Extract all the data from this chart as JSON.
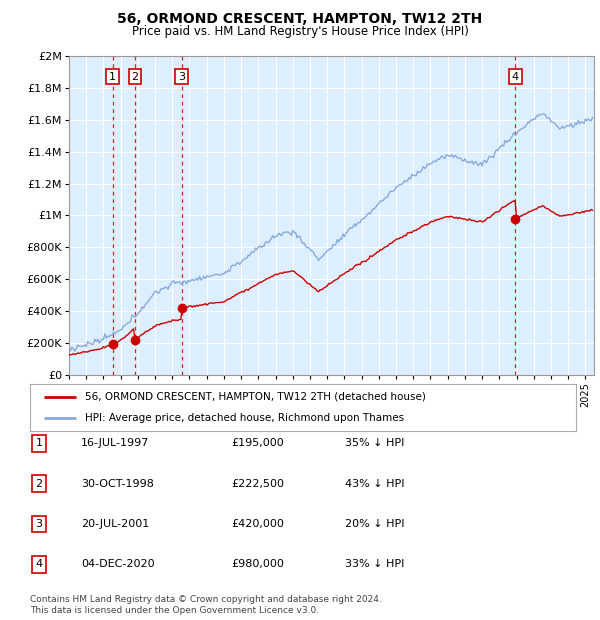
{
  "title": "56, ORMOND CRESCENT, HAMPTON, TW12 2TH",
  "subtitle": "Price paid vs. HM Land Registry's House Price Index (HPI)",
  "legend_line1": "56, ORMOND CRESCENT, HAMPTON, TW12 2TH (detached house)",
  "legend_line2": "HPI: Average price, detached house, Richmond upon Thames",
  "footer1": "Contains HM Land Registry data © Crown copyright and database right 2024.",
  "footer2": "This data is licensed under the Open Government Licence v3.0.",
  "sale_color": "#cc0000",
  "hpi_color": "#88aadd",
  "background_color": "#ddeeff",
  "plot_bg": "#ddeeff",
  "ylim": [
    0,
    2000000
  ],
  "yticks": [
    0,
    200000,
    400000,
    600000,
    800000,
    1000000,
    1200000,
    1400000,
    1600000,
    1800000,
    2000000
  ],
  "ytick_labels": [
    "£0",
    "£200K",
    "£400K",
    "£600K",
    "£800K",
    "£1M",
    "£1.2M",
    "£1.4M",
    "£1.6M",
    "£1.8M",
    "£2M"
  ],
  "sales": [
    {
      "date_num": 1997.54,
      "price": 195000,
      "label": "1"
    },
    {
      "date_num": 1998.83,
      "price": 222500,
      "label": "2"
    },
    {
      "date_num": 2001.55,
      "price": 420000,
      "label": "3"
    },
    {
      "date_num": 2020.92,
      "price": 980000,
      "label": "4"
    }
  ],
  "sale_vlines": [
    1997.54,
    1998.83,
    2001.55,
    2020.92
  ],
  "table": [
    [
      "1",
      "16-JUL-1997",
      "£195,000",
      "35% ↓ HPI"
    ],
    [
      "2",
      "30-OCT-1998",
      "£222,500",
      "43% ↓ HPI"
    ],
    [
      "3",
      "20-JUL-2001",
      "£420,000",
      "20% ↓ HPI"
    ],
    [
      "4",
      "04-DEC-2020",
      "£980,000",
      "33% ↓ HPI"
    ]
  ]
}
